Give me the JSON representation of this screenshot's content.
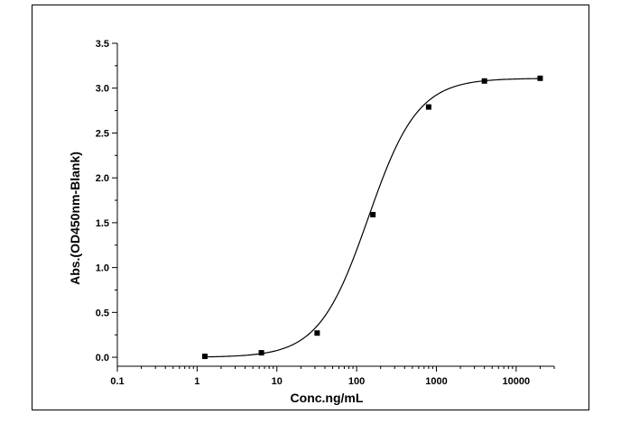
{
  "chart_data": {
    "type": "scatter",
    "title": "",
    "xlabel": "Conc.ng/mL",
    "ylabel": "Abs.(OD450nm-Blank)",
    "xscale": "log",
    "xlim": [
      0.1,
      30000
    ],
    "ylim": [
      -0.1,
      3.5
    ],
    "x_ticks": [
      0.1,
      1,
      10,
      100,
      1000,
      10000
    ],
    "x_tick_labels": [
      "0.1",
      "1",
      "10",
      "100",
      "1000",
      "10000"
    ],
    "y_ticks": [
      0.0,
      0.5,
      1.0,
      1.5,
      2.0,
      2.5,
      3.0,
      3.5
    ],
    "y_tick_labels": [
      "0.0",
      "0.5",
      "1.0",
      "1.5",
      "2.0",
      "2.5",
      "3.0",
      "3.5"
    ],
    "grid": false,
    "legend": "none",
    "series": [
      {
        "x": [
          1.25,
          6.4,
          32,
          160,
          800,
          4000,
          20000
        ],
        "y": [
          0.01,
          0.05,
          0.27,
          1.59,
          2.79,
          3.08,
          3.11
        ],
        "marker": "square",
        "color": "#000000"
      }
    ],
    "fit_curve": {
      "model": "4PL",
      "bottom": 0.0,
      "top": 3.11,
      "ec50": 140,
      "hill": 1.4,
      "color": "#000000"
    }
  }
}
